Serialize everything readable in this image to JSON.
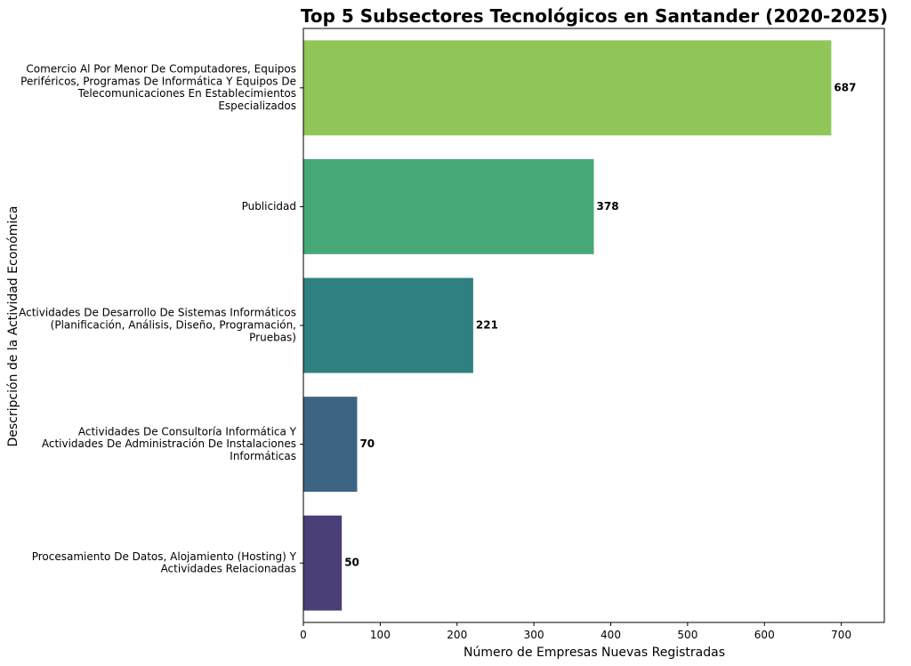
{
  "chart_data": {
    "type": "bar",
    "orientation": "horizontal",
    "title": "Top 5 Subsectores Tecnológicos en Santander (2020-2025)",
    "xlabel": "Número de Empresas Nuevas Registradas",
    "ylabel": "Descripción de la Actividad Económica",
    "xlim": [
      0,
      756
    ],
    "xticks": [
      0,
      100,
      200,
      300,
      400,
      500,
      600,
      700
    ],
    "grid": false,
    "categories": [
      [
        "Comercio Al Por Menor De Computadores, Equipos",
        "Periféricos, Programas De Informática Y Equipos De",
        "Telecomunicaciones En Establecimientos",
        "Especializados"
      ],
      [
        "Publicidad"
      ],
      [
        "Actividades De Desarrollo De Sistemas Informáticos",
        "(Planificación, Análisis, Diseño, Programación,",
        "Pruebas)"
      ],
      [
        "Actividades De Consultoría Informática Y",
        "Actividades De Administración De Instalaciones",
        "Informáticas"
      ],
      [
        "Procesamiento De Datos, Alojamiento (Hosting) Y",
        "Actividades Relacionadas"
      ]
    ],
    "values": [
      687,
      378,
      221,
      70,
      50
    ],
    "data_labels": [
      "687",
      "378",
      "221",
      "70",
      "50"
    ],
    "colors": [
      "#8fc657",
      "#47a877",
      "#2f8080",
      "#3e6483",
      "#4c3f78"
    ]
  }
}
